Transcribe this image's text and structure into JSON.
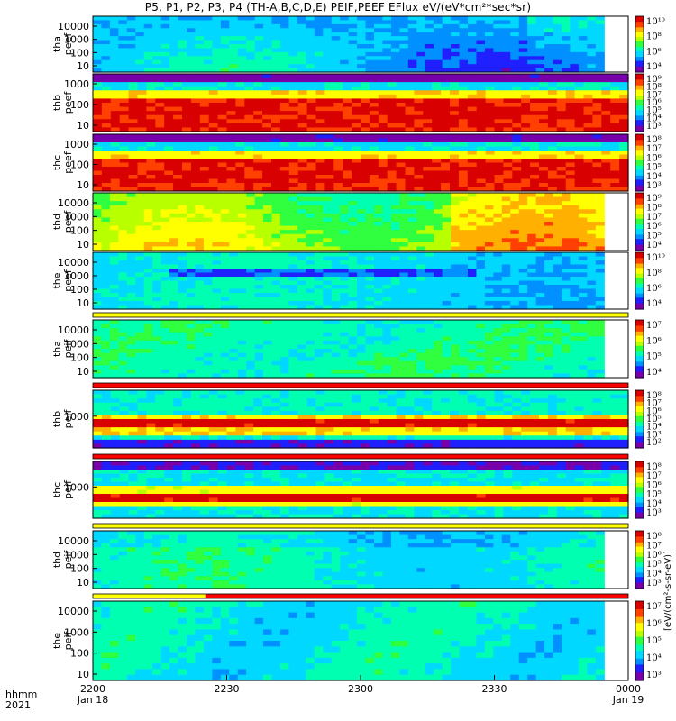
{
  "title": "P5, P1, P2, P3, P4 (TH-A,B,C,D,E) PEIF,PEEF EFlux eV/(eV*cm²*sec*sr)",
  "bottom_labels": {
    "line1": "hhmm",
    "line2": "2021"
  },
  "colorbar_label": "[eV/(cm²-s-sr-eV)]",
  "chart_data": {
    "type": "heatmap",
    "x": {
      "unit": "hhmm",
      "ticks": [
        {
          "label": "2200",
          "sublabel": "Jan 18",
          "minutes": 0
        },
        {
          "label": "2230",
          "sublabel": "",
          "minutes": 30
        },
        {
          "label": "2300",
          "sublabel": "",
          "minutes": 60
        },
        {
          "label": "2330",
          "sublabel": "",
          "minutes": 90
        },
        {
          "label": "0000",
          "sublabel": "Jan 19",
          "minutes": 120
        }
      ],
      "range_minutes": [
        0,
        120
      ]
    },
    "panels": [
      {
        "id": "tha_peef",
        "label": [
          "tha",
          "peef"
        ],
        "y_ticks": [
          "10000",
          "1000",
          "100",
          "10"
        ],
        "cbar_ticks": [
          "10¹⁰",
          "10⁸",
          "10⁶",
          "10⁴"
        ],
        "profile": "a_peef",
        "end_fraction": 0.955,
        "flag_above": null
      },
      {
        "id": "thb_peef",
        "label": [
          "thb",
          "peef"
        ],
        "y_ticks": [
          "1000",
          "100",
          "10"
        ],
        "cbar_ticks": [
          "10⁹",
          "10⁸",
          "10⁷",
          "10⁶",
          "10⁵",
          "10⁴",
          "10³"
        ],
        "profile": "b_peef",
        "end_fraction": 1.0,
        "flag_above": null
      },
      {
        "id": "thc_peef",
        "label": [
          "thc",
          "peef"
        ],
        "y_ticks": [
          "1000",
          "100",
          "10"
        ],
        "cbar_ticks": [
          "10⁸",
          "10⁷",
          "10⁶",
          "10⁵",
          "10⁴",
          "10³"
        ],
        "profile": "c_peef",
        "end_fraction": 1.0,
        "flag_above": null
      },
      {
        "id": "thd_peef",
        "label": [
          "thd",
          "peef"
        ],
        "y_ticks": [
          "10000",
          "1000",
          "100",
          "10"
        ],
        "cbar_ticks": [
          "10⁹",
          "10⁸",
          "10⁷",
          "10⁶",
          "10⁵",
          "10⁴"
        ],
        "profile": "d_peef",
        "end_fraction": 0.955,
        "flag_above": null
      },
      {
        "id": "the_peef",
        "label": [
          "the",
          "peef"
        ],
        "y_ticks": [
          "10000",
          "1000",
          "100",
          "10"
        ],
        "cbar_ticks": [
          "10¹⁰",
          "10⁸",
          "10⁶",
          "10⁴"
        ],
        "profile": "e_peef",
        "end_fraction": 0.955,
        "flag_above": null
      },
      {
        "id": "tha_peif",
        "label": [
          "tha",
          "peif"
        ],
        "y_ticks": [
          "10000",
          "1000",
          "100",
          "10"
        ],
        "cbar_ticks": [
          "10⁷",
          "10⁶",
          "10⁵",
          "10⁴"
        ],
        "profile": "a_peif",
        "end_fraction": 0.955,
        "flag_above": "yellow"
      },
      {
        "id": "thb_peif",
        "label": [
          "thb",
          "peif"
        ],
        "y_ticks": [
          "1000"
        ],
        "cbar_ticks": [
          "10⁸",
          "10⁷",
          "10⁶",
          "10⁵",
          "10⁴",
          "10³",
          "10²"
        ],
        "profile": "b_peif",
        "end_fraction": 1.0,
        "flag_above": "red"
      },
      {
        "id": "thc_peif",
        "label": [
          "thc",
          "peif"
        ],
        "y_ticks": [
          "1000"
        ],
        "cbar_ticks": [
          "10⁸",
          "10⁷",
          "10⁶",
          "10⁵",
          "10⁴",
          "10³"
        ],
        "profile": "c_peif",
        "end_fraction": 1.0,
        "flag_above": "red"
      },
      {
        "id": "thd_peif",
        "label": [
          "thd",
          "peif"
        ],
        "y_ticks": [
          "10000",
          "1000",
          "100",
          "10"
        ],
        "cbar_ticks": [
          "10⁸",
          "10⁷",
          "10⁶",
          "10⁵",
          "10⁴",
          "10³"
        ],
        "profile": "d_peif",
        "end_fraction": 0.955,
        "flag_above": "yellow"
      },
      {
        "id": "the_peif",
        "label": [
          "the",
          "peif"
        ],
        "y_ticks": [
          "10000",
          "1000",
          "100",
          "10"
        ],
        "cbar_ticks": [
          "10⁷",
          "10⁶",
          "10⁵",
          "10⁴",
          "10³"
        ],
        "profile": "e_peif",
        "end_fraction": 0.955,
        "flag_above": "yellow_red"
      }
    ],
    "flag_colors": {
      "yellow": "#ffff00",
      "red": "#ff0000",
      "white": "#ffffff"
    },
    "flag_split_fraction": 0.21,
    "colormap": [
      "#7700aa",
      "#2020ff",
      "#0090ff",
      "#00d8ff",
      "#00ffb0",
      "#30ff40",
      "#b8ff00",
      "#ffff00",
      "#ffb000",
      "#ff4000",
      "#d80000"
    ]
  }
}
